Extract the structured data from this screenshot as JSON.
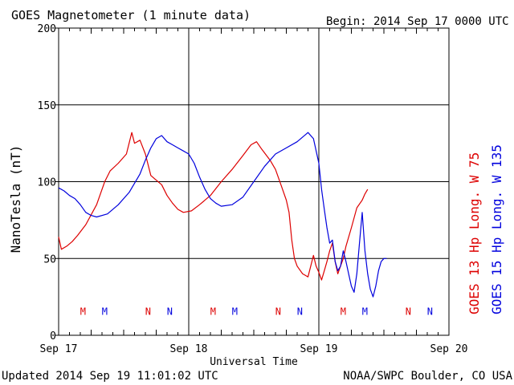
{
  "header": {
    "title": "GOES Magnetometer (1 minute data)",
    "begin": "Begin:  2014 Sep 17 0000 UTC"
  },
  "footer": {
    "updated": "Updated 2014 Sep 19 11:01:02 UTC",
    "source": "NOAA/SWPC Boulder, CO USA"
  },
  "colors": {
    "goes13": "#dd0000",
    "goes15": "#0000dd",
    "axis": "#000000"
  },
  "chart_data": {
    "type": "line",
    "title": "GOES Magnetometer (1 minute data)",
    "xlabel": "Universal Time",
    "ylabel": "NanoTesla (nT)",
    "xlim": [
      0,
      72
    ],
    "xunit": "hours since 2014 Sep 17 0000 UTC",
    "ylim": [
      0,
      200
    ],
    "yticks": [
      0,
      50,
      100,
      150,
      200
    ],
    "xticks": [
      {
        "x": 0,
        "label": "Sep 17"
      },
      {
        "x": 24,
        "label": "Sep 18"
      },
      {
        "x": 48,
        "label": "Sep 19"
      },
      {
        "x": 72,
        "label": "Sep 20"
      }
    ],
    "grid": true,
    "series": [
      {
        "name": "GOES 13 Hp  Long. W 75",
        "color": "#dd0000",
        "points": [
          [
            0,
            64
          ],
          [
            0.5,
            56
          ],
          [
            1.5,
            58
          ],
          [
            2.5,
            61
          ],
          [
            3.5,
            65
          ],
          [
            5,
            72
          ],
          [
            7,
            85
          ],
          [
            8.5,
            100
          ],
          [
            9.5,
            107
          ],
          [
            11,
            112
          ],
          [
            12.5,
            118
          ],
          [
            13.5,
            132
          ],
          [
            14,
            125
          ],
          [
            15,
            127
          ],
          [
            16,
            118
          ],
          [
            17,
            104
          ],
          [
            18,
            101
          ],
          [
            19,
            98
          ],
          [
            20,
            91
          ],
          [
            21,
            86
          ],
          [
            22,
            82
          ],
          [
            23,
            80
          ],
          [
            24.5,
            81
          ],
          [
            26,
            85
          ],
          [
            28,
            91
          ],
          [
            30,
            100
          ],
          [
            32,
            108
          ],
          [
            34,
            117
          ],
          [
            35.5,
            124
          ],
          [
            36.5,
            126
          ],
          [
            37.5,
            121
          ],
          [
            39,
            114
          ],
          [
            40,
            108
          ],
          [
            41,
            98
          ],
          [
            42,
            88
          ],
          [
            42.5,
            80
          ],
          [
            43,
            62
          ],
          [
            43.5,
            50
          ],
          [
            44,
            45
          ],
          [
            45,
            40
          ],
          [
            46,
            38
          ],
          [
            46.5,
            45
          ],
          [
            47,
            52
          ],
          [
            47.5,
            45
          ],
          [
            48,
            41
          ],
          [
            48.5,
            36
          ],
          [
            49,
            42
          ],
          [
            49.5,
            48
          ],
          [
            50,
            55
          ],
          [
            50.5,
            60
          ],
          [
            51,
            48
          ],
          [
            51.5,
            40
          ],
          [
            52,
            45
          ],
          [
            52.5,
            50
          ],
          [
            53,
            58
          ],
          [
            54,
            70
          ],
          [
            55,
            83
          ],
          [
            56,
            88
          ],
          [
            56.5,
            92
          ],
          [
            57,
            95
          ]
        ]
      },
      {
        "name": "GOES 15 Hp  Long. W 135",
        "color": "#0000dd",
        "points": [
          [
            0,
            96
          ],
          [
            1,
            94
          ],
          [
            2,
            91
          ],
          [
            3,
            89
          ],
          [
            4,
            85
          ],
          [
            5,
            80
          ],
          [
            6,
            78
          ],
          [
            7,
            77
          ],
          [
            9,
            79
          ],
          [
            11,
            85
          ],
          [
            13,
            93
          ],
          [
            15,
            105
          ],
          [
            16,
            114
          ],
          [
            17,
            122
          ],
          [
            18,
            128
          ],
          [
            19,
            130
          ],
          [
            20,
            126
          ],
          [
            21,
            124
          ],
          [
            22,
            122
          ],
          [
            23,
            120
          ],
          [
            24,
            118
          ],
          [
            25,
            112
          ],
          [
            26,
            103
          ],
          [
            27,
            95
          ],
          [
            28,
            89
          ],
          [
            29,
            86
          ],
          [
            30,
            84
          ],
          [
            32,
            85
          ],
          [
            34,
            90
          ],
          [
            36,
            100
          ],
          [
            38,
            110
          ],
          [
            40,
            118
          ],
          [
            42,
            122
          ],
          [
            44,
            126
          ],
          [
            46,
            132
          ],
          [
            47,
            128
          ],
          [
            48,
            112
          ],
          [
            48.5,
            95
          ],
          [
            49,
            82
          ],
          [
            49.5,
            70
          ],
          [
            50,
            60
          ],
          [
            50.5,
            62
          ],
          [
            51,
            48
          ],
          [
            51.5,
            42
          ],
          [
            52,
            45
          ],
          [
            52.5,
            55
          ],
          [
            53,
            48
          ],
          [
            53.5,
            40
          ],
          [
            54,
            32
          ],
          [
            54.5,
            28
          ],
          [
            55,
            40
          ],
          [
            55.5,
            60
          ],
          [
            56,
            80
          ],
          [
            56.5,
            55
          ],
          [
            57,
            40
          ],
          [
            57.5,
            30
          ],
          [
            58,
            25
          ],
          [
            58.5,
            32
          ],
          [
            59,
            42
          ],
          [
            59.5,
            48
          ],
          [
            60,
            50
          ],
          [
            60.5,
            50
          ]
        ]
      }
    ],
    "markers": [
      {
        "x": 4.5,
        "label": "M",
        "series": 0
      },
      {
        "x": 8.5,
        "label": "M",
        "series": 1
      },
      {
        "x": 16.5,
        "label": "N",
        "series": 0
      },
      {
        "x": 20.5,
        "label": "N",
        "series": 1
      },
      {
        "x": 28.5,
        "label": "M",
        "series": 0
      },
      {
        "x": 32.5,
        "label": "M",
        "series": 1
      },
      {
        "x": 40.5,
        "label": "N",
        "series": 0
      },
      {
        "x": 44.5,
        "label": "N",
        "series": 1
      },
      {
        "x": 52.5,
        "label": "M",
        "series": 0
      },
      {
        "x": 56.5,
        "label": "M",
        "series": 1
      },
      {
        "x": 64.5,
        "label": "N",
        "series": 0
      },
      {
        "x": 68.5,
        "label": "N",
        "series": 1
      }
    ],
    "marker_level": 16
  }
}
